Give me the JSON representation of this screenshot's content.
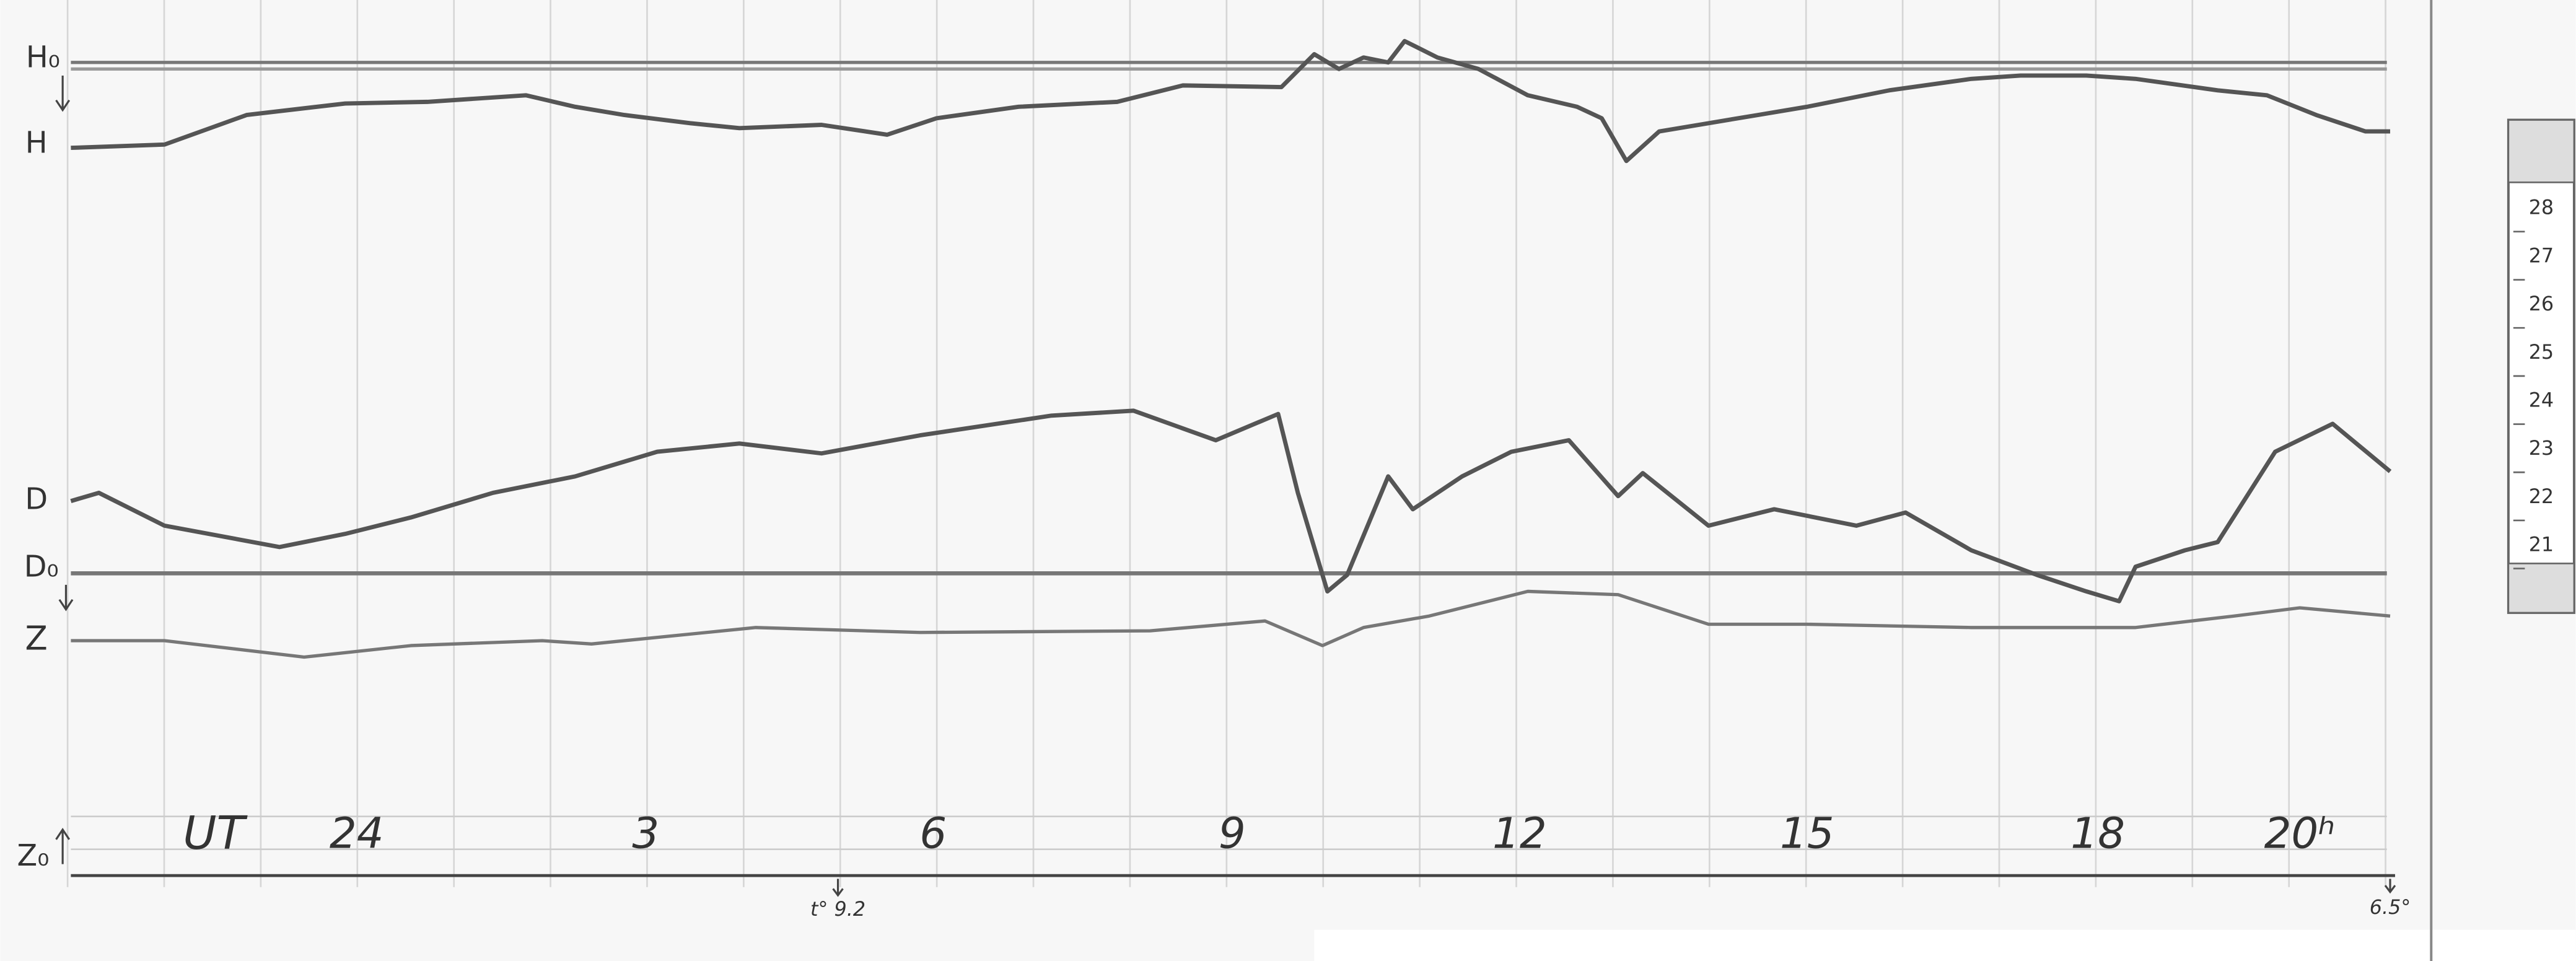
{
  "traces": {
    "h0": "H₀",
    "h": "H",
    "d": "D",
    "d0": "D₀",
    "z": "Z",
    "z0": "Z₀"
  },
  "time_axis": {
    "label": "UT",
    "hours": [
      "24",
      "3",
      "6",
      "9",
      "12",
      "15",
      "18",
      "20ʰ"
    ]
  },
  "temperatures": {
    "start": "t° 9.2",
    "end": "6.5°"
  },
  "scale": [
    "28",
    "27",
    "26",
    "25",
    "24",
    "23",
    "22",
    "21"
  ]
}
